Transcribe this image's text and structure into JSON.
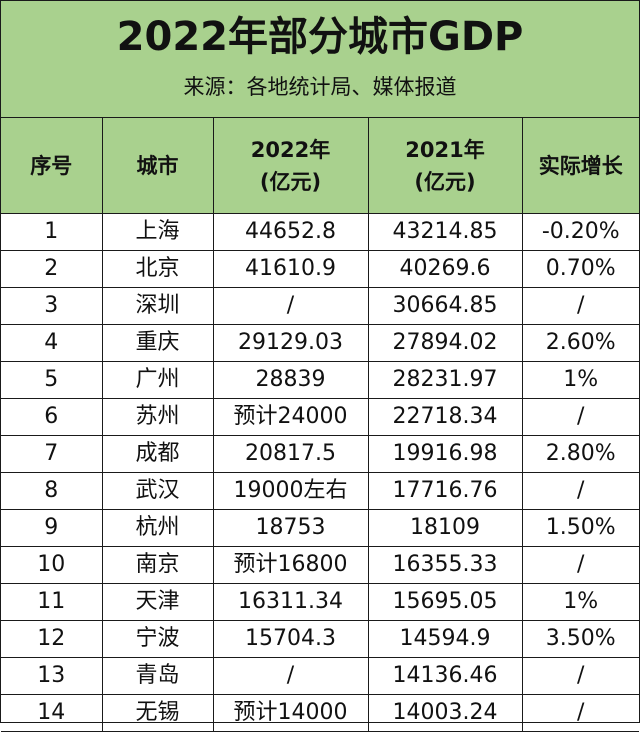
{
  "title": "2022年部分城市GDP",
  "source": "来源：各地统计局、媒体报道",
  "headers": [
    {
      "line1": "序号",
      "line2": ""
    },
    {
      "line1": "城市",
      "line2": ""
    },
    {
      "line1": "2022年",
      "line2": "(亿元)"
    },
    {
      "line1": "2021年",
      "line2": "(亿元)"
    },
    {
      "line1": "实际增长",
      "line2": ""
    }
  ],
  "rows": [
    [
      "1",
      "上海",
      "44652.8",
      "43214.85",
      "-0.20%"
    ],
    [
      "2",
      "北京",
      "41610.9",
      "40269.6",
      "0.70%"
    ],
    [
      "3",
      "深圳",
      "/",
      "30664.85",
      "/"
    ],
    [
      "4",
      "重庆",
      "29129.03",
      "27894.02",
      "2.60%"
    ],
    [
      "5",
      "广州",
      "28839",
      "28231.97",
      "1%"
    ],
    [
      "6",
      "苏州",
      "预计24000",
      "22718.34",
      "/"
    ],
    [
      "7",
      "成都",
      "20817.5",
      "19916.98",
      "2.80%"
    ],
    [
      "8",
      "武汉",
      "19000左右",
      "17716.76",
      "/"
    ],
    [
      "9",
      "杭州",
      "18753",
      "18109",
      "1.50%"
    ],
    [
      "10",
      "南京",
      "预计16800",
      "16355.33",
      "/"
    ],
    [
      "11",
      "天津",
      "16311.34",
      "15695.05",
      "1%"
    ],
    [
      "12",
      "宁波",
      "15704.3",
      "14594.9",
      "3.50%"
    ],
    [
      "13",
      "青岛",
      "/",
      "14136.46",
      "/"
    ],
    [
      "14",
      "无锡",
      "预计14000",
      "14003.24",
      "/"
    ]
  ],
  "colors": {
    "header_bg": "#a9d18e",
    "border": "#1a1a1a",
    "text": "#111111"
  }
}
